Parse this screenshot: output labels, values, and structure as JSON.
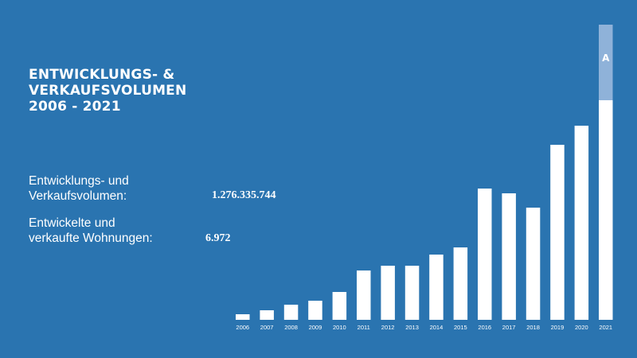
{
  "title": {
    "line1": "ENTWICKLUNGS- &",
    "line2": "VERKAUFSVOLUMEN",
    "line3": "2006 - 2021"
  },
  "stats": {
    "volume_label_line1": "Entwicklungs- und",
    "volume_label_line2": "Verkaufsvolumen:",
    "volume_value": "1.276.335.744",
    "units_label_line1": "Entwickelte und",
    "units_label_line2": "verkaufte Wohnungen:",
    "units_value": "6.972"
  },
  "logo_text": "A",
  "colors": {
    "background": "#2a74b0",
    "bar": "#ffffff",
    "highlight": "#8fb2d9"
  },
  "chart_data": {
    "type": "bar",
    "categories": [
      "2006",
      "2007",
      "2008",
      "2009",
      "2010",
      "2011",
      "2012",
      "2013",
      "2014",
      "2015",
      "2016",
      "2017",
      "2018",
      "2019",
      "2020",
      "2021"
    ],
    "values": [
      7,
      12,
      19,
      24,
      35,
      62,
      68,
      68,
      82,
      91,
      165,
      159,
      141,
      220,
      244,
      276
    ],
    "highlight_extension": {
      "category": "2021",
      "top": 371
    },
    "ylim": [
      0,
      371
    ],
    "grid": false,
    "title": ""
  }
}
